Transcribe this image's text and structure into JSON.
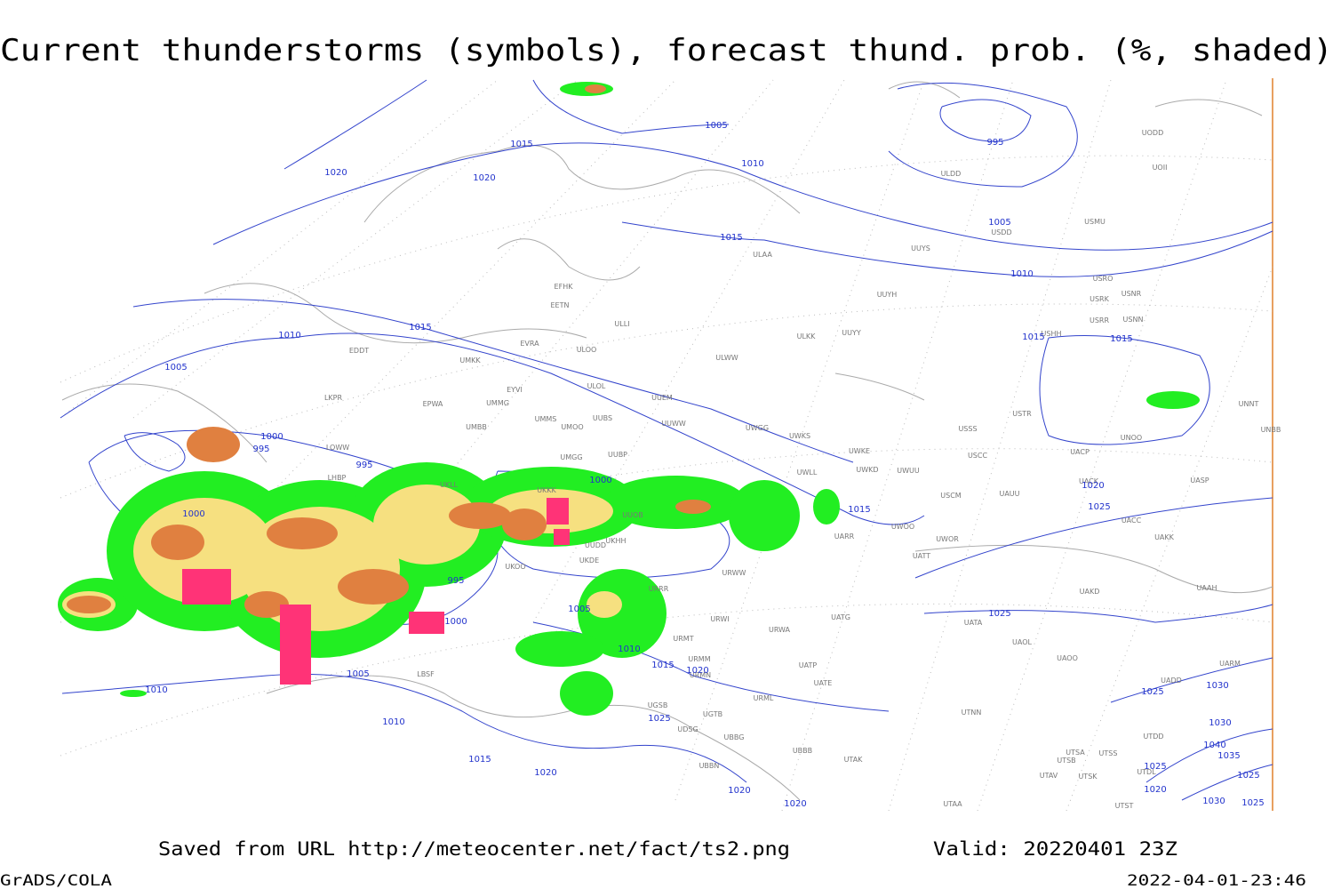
{
  "title": "Current thunderstorms (symbols), forecast thund. prob. (%, shaded)",
  "footer": {
    "source": "Saved from URL http://meteocenter.net/fact/ts2.png",
    "valid": "Valid: 20220401 23Z",
    "software": "GrADS/COLA",
    "timestamp": "2022-04-01-23:46"
  },
  "isobars": [
    1015,
    1020,
    1020,
    1005,
    1010,
    995,
    1015,
    1005,
    1010,
    1015,
    1015,
    1015,
    1010,
    1005,
    1000,
    995,
    995,
    1000,
    1000,
    995,
    1000,
    1005,
    1010,
    1015,
    1020,
    1020,
    1025,
    1025,
    1015,
    1010,
    1005,
    1010,
    1015,
    1020,
    1025,
    1020,
    1020,
    1025,
    1030,
    1030,
    1040,
    1035,
    1025,
    1025,
    1020,
    1030,
    1025
  ],
  "stations": [
    "ULDD",
    "UODD",
    "UOII",
    "USDD",
    "USMU",
    "UUYS",
    "ULAA",
    "USRO",
    "USRK",
    "USNR",
    "USRR",
    "USNN",
    "USHH",
    "UUYH",
    "ULKK",
    "UUYY",
    "EFHK",
    "EETN",
    "ULLI",
    "EVRA",
    "ULOO",
    "EDDT",
    "UMKK",
    "ULWW",
    "ULOL",
    "EYVI",
    "UUEM",
    "LKPR",
    "EPWA",
    "UMMG",
    "UMMS",
    "UUBS",
    "UUWW",
    "UMOO",
    "UMBB",
    "UWGG",
    "UWKS",
    "USSS",
    "USTR",
    "UNNT",
    "UNBB",
    "UNOO",
    "UWKE",
    "LOWW",
    "UMGG",
    "UUBP",
    "UACP",
    "USCC",
    "UWKD",
    "UWUU",
    "UWLL",
    "UASP",
    "UACK",
    "LHBP",
    "UKLL",
    "UKKK",
    "UUOB",
    "USCM",
    "UAUU",
    "UWOO",
    "UACC",
    "UAKK",
    "UARR",
    "UWOR",
    "UKHH",
    "UUDD",
    "UATT",
    "UKDE",
    "UKOO",
    "URWW",
    "UAAH",
    "UAKD",
    "URRR",
    "UATG",
    "URWI",
    "UATA",
    "URWA",
    "URMT",
    "UAOL",
    "UAOO",
    "URMM",
    "UATP",
    "URMN",
    "UATE",
    "LBSF",
    "UARM",
    "UADD",
    "URML",
    "UGSB",
    "UGTB",
    "UTNN",
    "UTDD",
    "UDSG",
    "UBBG",
    "UBBB",
    "UTAK",
    "UTSA",
    "UTSS",
    "UTSB",
    "UBBN",
    "UTAV",
    "UTSK",
    "UTDL",
    "UTAA",
    "UTST"
  ]
}
